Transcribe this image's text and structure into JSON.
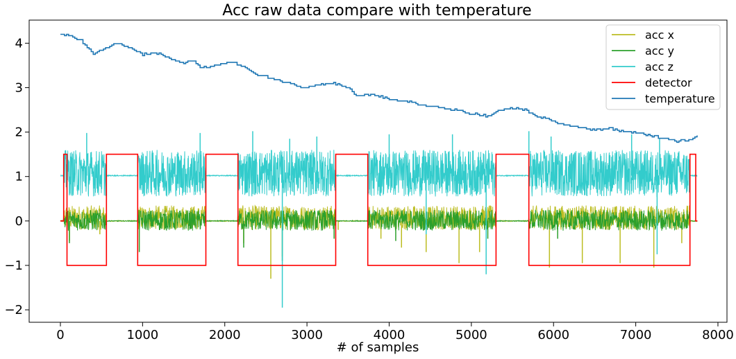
{
  "chart_data": {
    "type": "line",
    "title": "Acc raw data compare with temperature",
    "xlabel": "# of samples",
    "ylabel": "",
    "xlim": [
      -380,
      8110
    ],
    "ylim": [
      -2.28,
      4.52
    ],
    "xticks": [
      0,
      1000,
      2000,
      3000,
      4000,
      5000,
      6000,
      7000,
      8000
    ],
    "yticks": [
      -2,
      -1,
      0,
      1,
      2,
      3,
      4
    ],
    "grid": false,
    "legend_position": "top-right",
    "series": [
      {
        "name": "acc x",
        "color": "#bcbd22",
        "baseline": 0.0,
        "active_amplitude": [
          -0.2,
          0.35
        ],
        "spikes": [
          [
            110,
            -0.45
          ],
          [
            480,
            -0.3
          ],
          [
            940,
            -0.45
          ],
          [
            2230,
            -0.5
          ],
          [
            2560,
            -1.3
          ],
          [
            2700,
            -0.8
          ],
          [
            3380,
            -0.2
          ],
          [
            3900,
            -0.4
          ],
          [
            4150,
            -0.6
          ],
          [
            4450,
            -0.7
          ],
          [
            4850,
            -0.95
          ],
          [
            5100,
            -0.7
          ],
          [
            5950,
            -1.05
          ],
          [
            6350,
            -0.95
          ],
          [
            6810,
            -0.95
          ],
          [
            7220,
            -1.05
          ],
          [
            7560,
            -0.5
          ]
        ]
      },
      {
        "name": "acc y",
        "color": "#2ca02c",
        "baseline": 0.0,
        "active_amplitude": [
          -0.22,
          0.25
        ],
        "spikes": [
          [
            110,
            -0.5
          ],
          [
            960,
            -0.7
          ],
          [
            2230,
            -0.6
          ],
          [
            2700,
            -0.9
          ],
          [
            3330,
            -0.4
          ],
          [
            4080,
            -0.45
          ],
          [
            5200,
            -0.4
          ],
          [
            6050,
            -0.4
          ]
        ]
      },
      {
        "name": "acc z",
        "color": "#33cccc",
        "baseline": 1.02,
        "active_amplitude": [
          0.55,
          1.6
        ],
        "spikes": [
          [
            320,
            1.98
          ],
          [
            1700,
            1.98
          ],
          [
            2340,
            2.02
          ],
          [
            2700,
            -1.95
          ],
          [
            2790,
            1.85
          ],
          [
            3120,
            1.9
          ],
          [
            4000,
            1.95
          ],
          [
            4450,
            -0.3
          ],
          [
            4770,
            1.95
          ],
          [
            5180,
            -1.2
          ],
          [
            5700,
            2.02
          ],
          [
            5970,
            1.9
          ],
          [
            6950,
            1.95
          ],
          [
            7260,
            -0.75
          ],
          [
            7290,
            1.85
          ]
        ]
      },
      {
        "name": "detector",
        "color": "#ff0000",
        "x": [
          0,
          40,
          40,
          80,
          80,
          560,
          560,
          940,
          940,
          1770,
          1770,
          2160,
          2160,
          3350,
          3350,
          3740,
          3740,
          5300,
          5300,
          5700,
          5700,
          7660,
          7660,
          7730,
          7730,
          7750
        ],
        "y": [
          0,
          0,
          1.5,
          1.5,
          -1,
          -1,
          1.5,
          1.5,
          -1,
          -1,
          1.5,
          1.5,
          -1,
          -1,
          1.5,
          1.5,
          -1,
          -1,
          1.5,
          1.5,
          -1,
          -1,
          1.5,
          1.5,
          0,
          0
        ]
      },
      {
        "name": "temperature",
        "color": "#1f77b4",
        "x": [
          0,
          100,
          250,
          400,
          550,
          700,
          850,
          1000,
          1200,
          1400,
          1500,
          1600,
          1700,
          1800,
          1950,
          2100,
          2250,
          2400,
          2600,
          2800,
          2950,
          3100,
          3300,
          3500,
          3600,
          3800,
          4000,
          4200,
          4400,
          4600,
          4800,
          5000,
          5100,
          5200,
          5300,
          5500,
          5650,
          5800,
          6000,
          6150,
          6300,
          6500,
          6700,
          6900,
          7100,
          7250,
          7400,
          7500,
          7620,
          7750
        ],
        "y": [
          4.2,
          4.18,
          4.05,
          3.75,
          3.9,
          4.0,
          3.9,
          3.75,
          3.78,
          3.6,
          3.55,
          3.62,
          3.45,
          3.45,
          3.55,
          3.58,
          3.45,
          3.3,
          3.2,
          3.1,
          3.0,
          3.05,
          3.1,
          3.02,
          2.8,
          2.85,
          2.75,
          2.7,
          2.6,
          2.55,
          2.5,
          2.42,
          2.4,
          2.35,
          2.45,
          2.55,
          2.5,
          2.35,
          2.25,
          2.15,
          2.1,
          2.05,
          2.08,
          2.0,
          1.95,
          1.9,
          1.85,
          1.8,
          1.82,
          1.9
        ]
      }
    ],
    "active_segments": [
      [
        40,
        560
      ],
      [
        940,
        1770
      ],
      [
        2160,
        3350
      ],
      [
        3740,
        5300
      ],
      [
        5700,
        7660
      ]
    ],
    "x_range": [
      0,
      7750
    ]
  }
}
